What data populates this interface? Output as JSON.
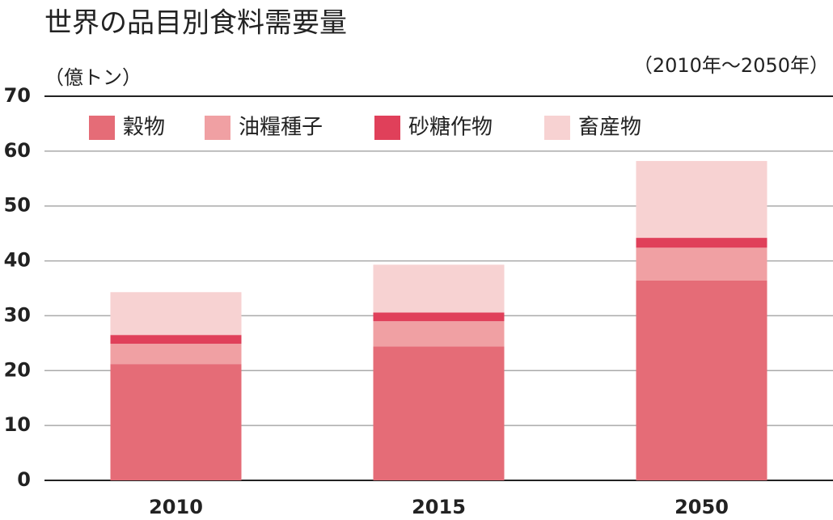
{
  "chart_data": {
    "type": "stacked-bar",
    "title": "世界の品目別食料需要量",
    "unit": "（億トン）",
    "period": "（2010年～2050年）",
    "categories": [
      "2010",
      "2015",
      "2050"
    ],
    "series": [
      {
        "name": "穀物",
        "color": "#e56c77",
        "values": [
          21.2,
          24.4,
          36.4
        ]
      },
      {
        "name": "油糧種子",
        "color": "#f0a0a3",
        "values": [
          3.7,
          4.6,
          6.0
        ]
      },
      {
        "name": "砂糖作物",
        "color": "#e0405a",
        "values": [
          1.6,
          1.6,
          1.8
        ]
      },
      {
        "name": "畜産物",
        "color": "#f7d2d2",
        "values": [
          7.8,
          8.7,
          14.0
        ]
      }
    ],
    "ylim": [
      0,
      70
    ],
    "yticks": [
      0,
      10,
      20,
      30,
      40,
      50,
      60,
      70
    ],
    "grid": true
  }
}
